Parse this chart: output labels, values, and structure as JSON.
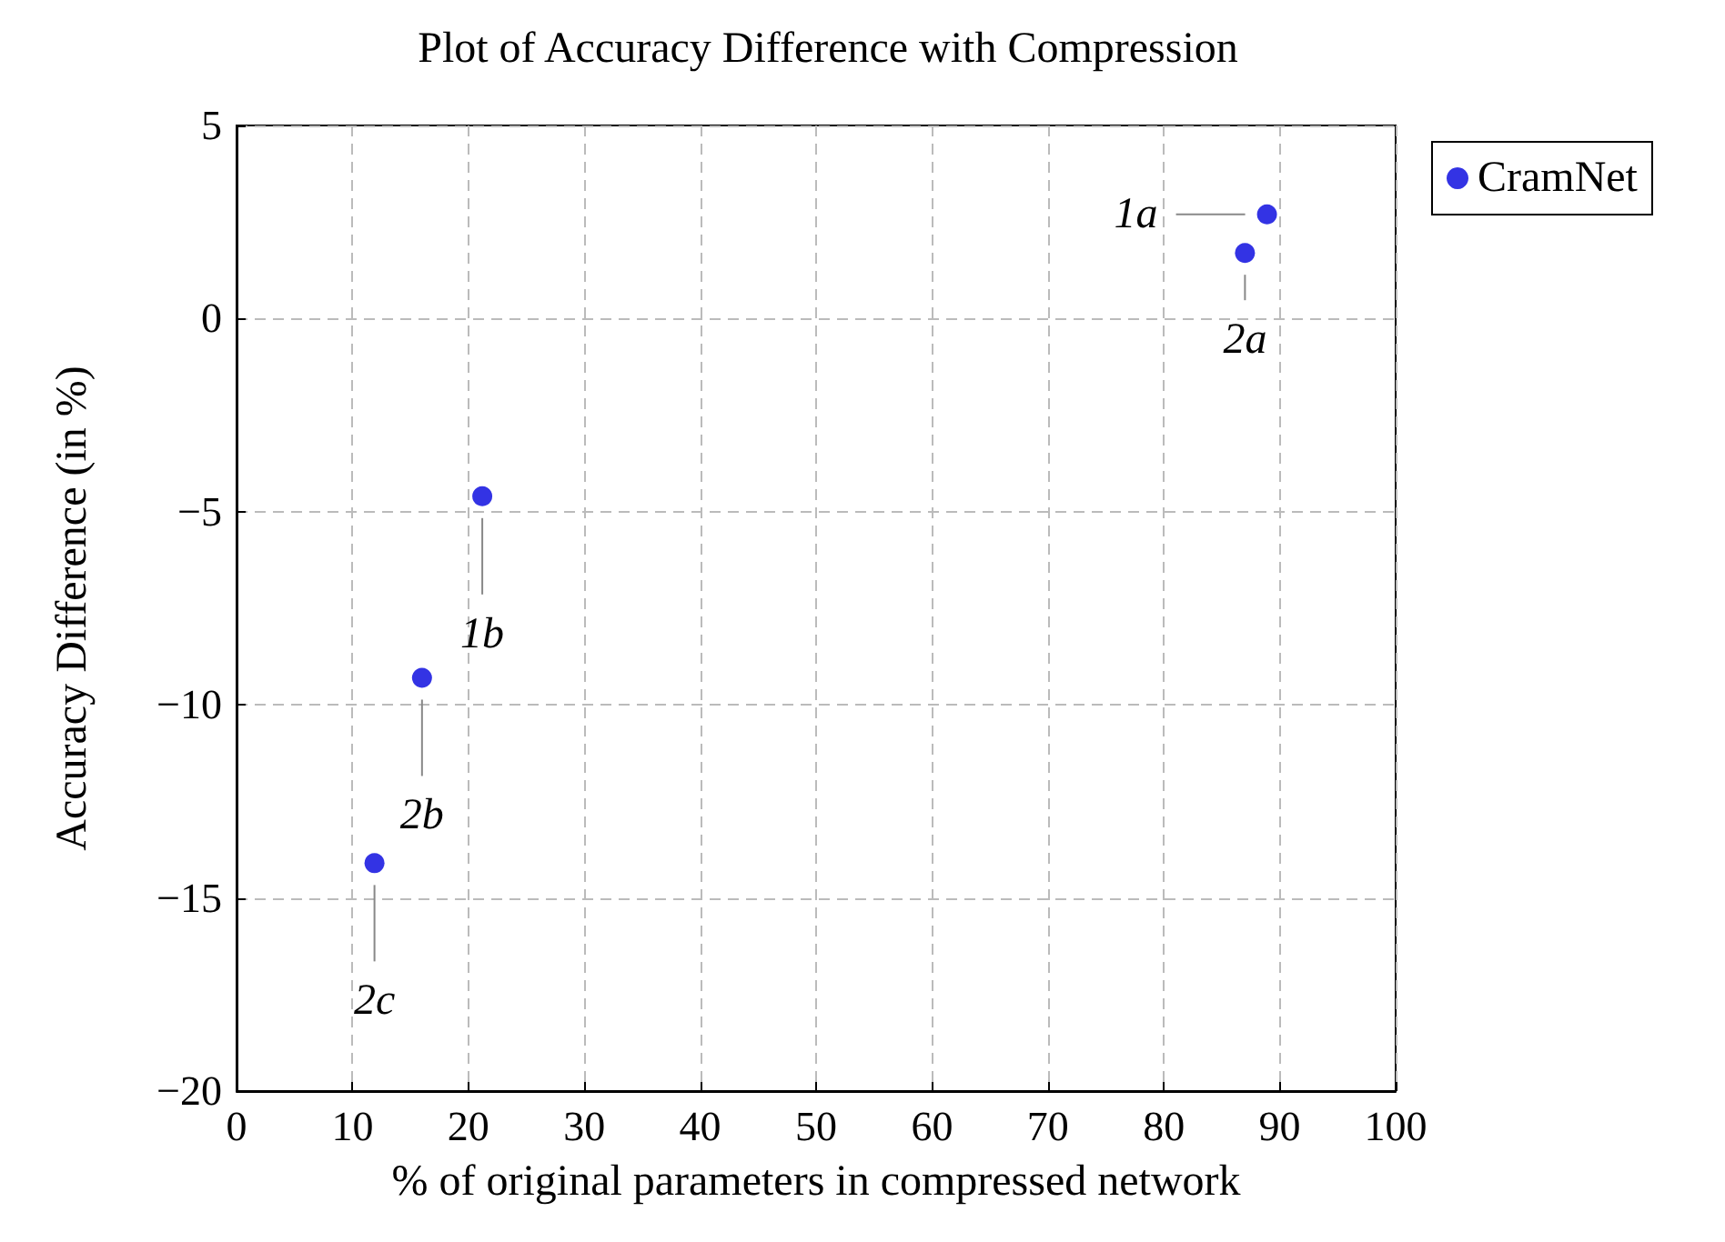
{
  "chart_data": {
    "type": "scatter",
    "title": "Plot of Accuracy Difference with Compression",
    "xlabel": "% of original parameters in compressed network",
    "ylabel": "Accuracy Difference (in %)",
    "series": [
      {
        "name": "CramNet",
        "color": "#0000dd",
        "x": [
          88.9,
          87.0,
          21.2,
          16.0,
          11.9
        ],
        "values": [
          2.7,
          1.7,
          -4.6,
          -9.3,
          -14.1
        ]
      }
    ],
    "xlim": [
      0,
      100
    ],
    "xticks": [
      0,
      10,
      20,
      30,
      40,
      50,
      60,
      70,
      80,
      90,
      100
    ],
    "ylim": [
      -20,
      5
    ],
    "yticks": [
      {
        "value": -20,
        "label": "−20"
      },
      {
        "value": -15,
        "label": "−15"
      },
      {
        "value": -10,
        "label": "−10"
      },
      {
        "value": -5,
        "label": "−5"
      },
      0,
      5
    ],
    "annotations": [
      {
        "text": "1a",
        "x": 88.9,
        "y": 2.7
      },
      {
        "text": "2a",
        "x": 87.0,
        "y": 1.7
      },
      {
        "text": "1b",
        "x": 21.2,
        "y": -4.6
      },
      {
        "text": "2b",
        "x": 16.0,
        "y": -9.3
      },
      {
        "text": "2c",
        "x": 11.9,
        "y": -14.1
      }
    ],
    "grid": true,
    "legend": "top right",
    "marker": "circle"
  }
}
